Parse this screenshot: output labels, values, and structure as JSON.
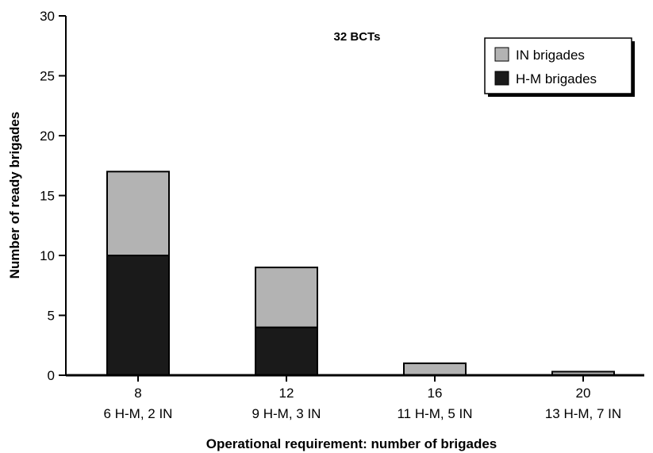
{
  "chart_data": {
    "type": "bar",
    "stacked": true,
    "annotation": "32 BCTs",
    "xlabel": "Operational requirement: number of brigades",
    "ylabel": "Number of ready brigades",
    "ylim": [
      0,
      30
    ],
    "yticks": [
      0,
      5,
      10,
      15,
      20,
      25,
      30
    ],
    "categories": [
      {
        "line1": "8",
        "line2": "6 H-M, 2 IN"
      },
      {
        "line1": "12",
        "line2": "9 H-M, 3 IN"
      },
      {
        "line1": "16",
        "line2": "11 H-M, 5 IN"
      },
      {
        "line1": "20",
        "line2": "13 H-M, 7 IN"
      }
    ],
    "series": [
      {
        "name": "H-M brigades",
        "color": "#1a1a1a",
        "values": [
          10,
          4,
          0,
          0
        ]
      },
      {
        "name": "IN brigades",
        "color": "#b3b3b3",
        "values": [
          7,
          5,
          1,
          0.3
        ]
      }
    ],
    "legend": {
      "position": "top-right",
      "order": [
        "IN brigades",
        "H-M brigades"
      ]
    },
    "grid": false
  }
}
